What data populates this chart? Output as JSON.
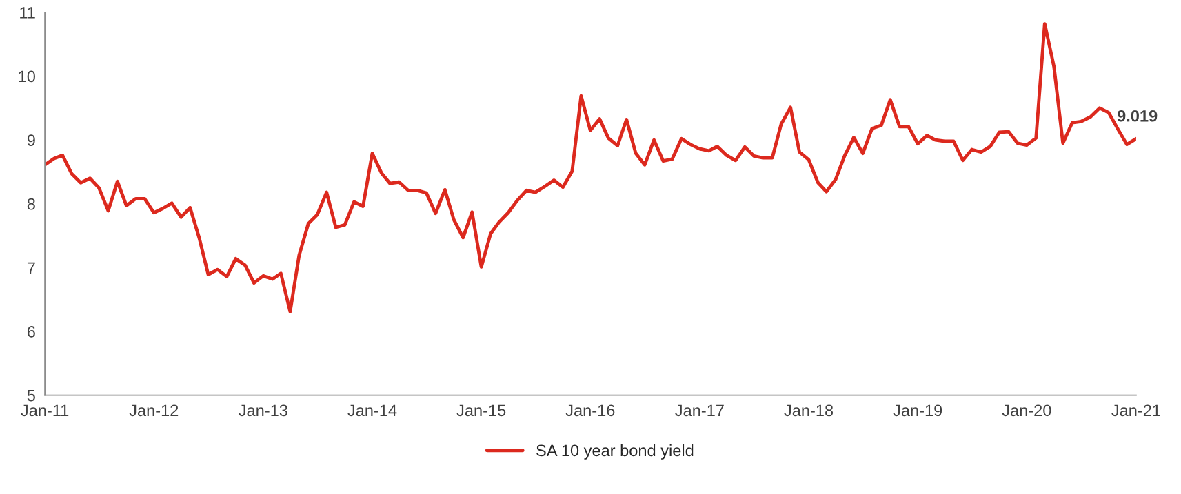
{
  "chart_data": {
    "type": "line",
    "x": [
      "2011-01",
      "2011-02",
      "2011-03",
      "2011-04",
      "2011-05",
      "2011-06",
      "2011-07",
      "2011-08",
      "2011-09",
      "2011-10",
      "2011-11",
      "2011-12",
      "2012-01",
      "2012-02",
      "2012-03",
      "2012-04",
      "2012-05",
      "2012-06",
      "2012-07",
      "2012-08",
      "2012-09",
      "2012-10",
      "2012-11",
      "2012-12",
      "2013-01",
      "2013-02",
      "2013-03",
      "2013-04",
      "2013-05",
      "2013-06",
      "2013-07",
      "2013-08",
      "2013-09",
      "2013-10",
      "2013-11",
      "2013-12",
      "2014-01",
      "2014-02",
      "2014-03",
      "2014-04",
      "2014-05",
      "2014-06",
      "2014-07",
      "2014-08",
      "2014-09",
      "2014-10",
      "2014-11",
      "2014-12",
      "2015-01",
      "2015-02",
      "2015-03",
      "2015-04",
      "2015-05",
      "2015-06",
      "2015-07",
      "2015-08",
      "2015-09",
      "2015-10",
      "2015-11",
      "2015-12",
      "2016-01",
      "2016-02",
      "2016-03",
      "2016-04",
      "2016-05",
      "2016-06",
      "2016-07",
      "2016-08",
      "2016-09",
      "2016-10",
      "2016-11",
      "2016-12",
      "2017-01",
      "2017-02",
      "2017-03",
      "2017-04",
      "2017-05",
      "2017-06",
      "2017-07",
      "2017-08",
      "2017-09",
      "2017-10",
      "2017-11",
      "2017-12",
      "2018-01",
      "2018-02",
      "2018-03",
      "2018-04",
      "2018-05",
      "2018-06",
      "2018-07",
      "2018-08",
      "2018-09",
      "2018-10",
      "2018-11",
      "2018-12",
      "2019-01",
      "2019-02",
      "2019-03",
      "2019-04",
      "2019-05",
      "2019-06",
      "2019-07",
      "2019-08",
      "2019-09",
      "2019-10",
      "2019-11",
      "2019-12",
      "2020-01",
      "2020-02",
      "2020-03",
      "2020-04",
      "2020-05",
      "2020-06",
      "2020-07",
      "2020-08",
      "2020-09",
      "2020-10",
      "2020-11",
      "2020-12",
      "2021-01"
    ],
    "series": [
      {
        "name": "SA 10 year bond yield",
        "color": "#dc291e",
        "values": [
          8.61,
          8.71,
          8.76,
          8.47,
          8.33,
          8.4,
          8.25,
          7.89,
          8.35,
          7.97,
          8.08,
          8.08,
          7.86,
          7.93,
          8.01,
          7.79,
          7.94,
          7.46,
          6.89,
          6.97,
          6.86,
          7.14,
          7.04,
          6.76,
          6.87,
          6.82,
          6.91,
          6.31,
          7.19,
          7.69,
          7.83,
          8.18,
          7.63,
          7.67,
          8.03,
          7.96,
          8.79,
          8.48,
          8.32,
          8.34,
          8.21,
          8.21,
          8.17,
          7.85,
          8.22,
          7.75,
          7.47,
          7.87,
          7.01,
          7.53,
          7.71,
          7.86,
          8.05,
          8.21,
          8.18,
          8.27,
          8.37,
          8.26,
          8.51,
          9.69,
          9.15,
          9.33,
          9.03,
          8.91,
          9.32,
          8.79,
          8.61,
          9.0,
          8.67,
          8.7,
          9.02,
          8.93,
          8.86,
          8.83,
          8.9,
          8.76,
          8.68,
          8.89,
          8.75,
          8.72,
          8.72,
          9.25,
          9.51,
          8.81,
          8.69,
          8.33,
          8.19,
          8.38,
          8.75,
          9.04,
          8.79,
          9.18,
          9.23,
          9.63,
          9.21,
          9.21,
          8.94,
          9.07,
          9.0,
          8.98,
          8.98,
          8.68,
          8.85,
          8.81,
          8.9,
          9.12,
          9.13,
          8.95,
          8.92,
          9.03,
          10.82,
          10.15,
          8.95,
          9.27,
          9.29,
          9.36,
          9.5,
          9.43,
          9.17,
          8.93,
          9.019
        ],
        "value_labels": [
          null,
          null,
          null,
          null,
          null,
          null,
          null,
          null,
          null,
          null,
          null,
          null,
          null,
          null,
          null,
          null,
          null,
          null,
          null,
          null,
          null,
          null,
          null,
          null,
          null,
          null,
          null,
          null,
          null,
          null,
          null,
          null,
          null,
          null,
          null,
          null,
          null,
          null,
          null,
          null,
          null,
          null,
          null,
          null,
          null,
          null,
          null,
          null,
          null,
          null,
          null,
          null,
          null,
          null,
          null,
          null,
          null,
          null,
          null,
          null,
          null,
          null,
          null,
          null,
          null,
          null,
          null,
          null,
          null,
          null,
          null,
          null,
          null,
          null,
          null,
          null,
          null,
          null,
          null,
          null,
          null,
          null,
          null,
          null,
          null,
          null,
          null,
          null,
          null,
          null,
          null,
          null,
          null,
          null,
          null,
          null,
          null,
          null,
          null,
          null,
          null,
          null,
          null,
          null,
          null,
          null,
          null,
          null,
          null,
          null,
          null,
          null,
          null,
          null,
          null,
          null,
          null,
          null,
          null,
          null,
          "9.019"
        ]
      }
    ],
    "xlim": [
      "2011-01",
      "2021-01"
    ],
    "xticks": [
      {
        "value": "2011-01",
        "label": "Jan-11"
      },
      {
        "value": "2012-01",
        "label": "Jan-12"
      },
      {
        "value": "2013-01",
        "label": "Jan-13"
      },
      {
        "value": "2014-01",
        "label": "Jan-14"
      },
      {
        "value": "2015-01",
        "label": "Jan-15"
      },
      {
        "value": "2016-01",
        "label": "Jan-16"
      },
      {
        "value": "2017-01",
        "label": "Jan-17"
      },
      {
        "value": "2018-01",
        "label": "Jan-18"
      },
      {
        "value": "2019-01",
        "label": "Jan-19"
      },
      {
        "value": "2020-01",
        "label": "Jan-20"
      },
      {
        "value": "2021-01",
        "label": "Jan-21"
      }
    ],
    "ylim": [
      5,
      11
    ],
    "yticks": [
      5,
      6,
      7,
      8,
      9,
      10,
      11
    ],
    "grid": false,
    "legend": "bottom",
    "marker": "none",
    "line_style": "solid"
  }
}
